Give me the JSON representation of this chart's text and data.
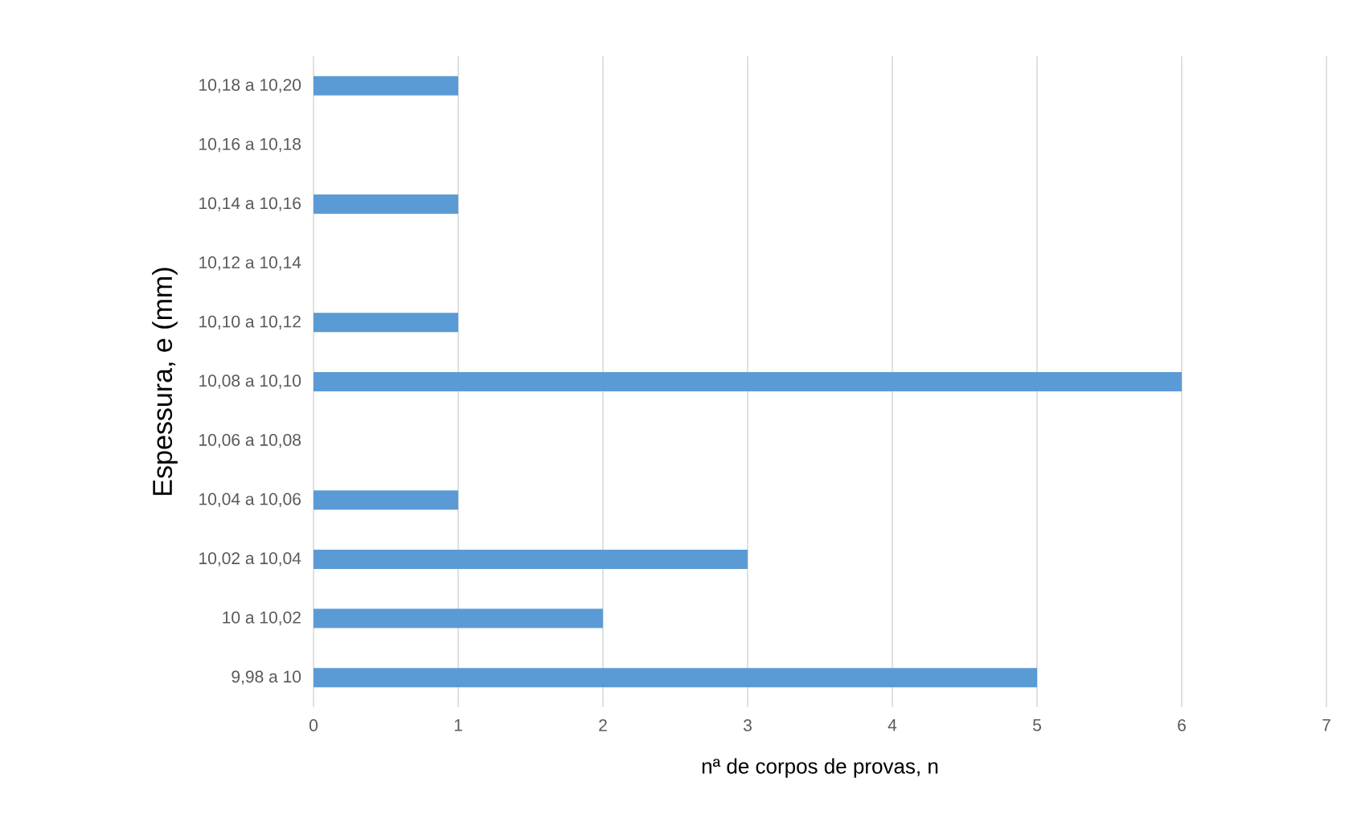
{
  "chart_data": {
    "type": "bar",
    "orientation": "horizontal",
    "xlabel": "nª de corpos de provas, n",
    "ylabel": "Espessura, e (mm)",
    "categories": [
      "10,18 a 10,20",
      "10,16 a 10,18",
      "10,14 a 10,16",
      "10,12 a 10,14",
      "10,10 a 10,12",
      "10,08 a 10,10",
      "10,06 a 10,08",
      "10,04 a 10,06",
      "10,02 a 10,04",
      "10 a 10,02",
      "9,98 a 10"
    ],
    "values": [
      1,
      0,
      1,
      0,
      1,
      6,
      0,
      1,
      3,
      2,
      5
    ],
    "color": "#5b9bd5",
    "xlim": [
      0,
      7
    ],
    "xticks": [
      0,
      1,
      2,
      3,
      4,
      5,
      6,
      7
    ],
    "grid": "x"
  }
}
